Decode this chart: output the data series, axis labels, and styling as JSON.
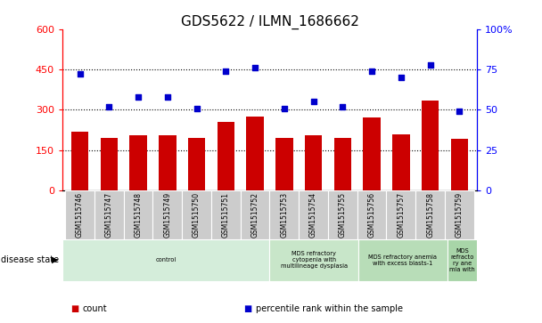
{
  "title": "GDS5622 / ILMN_1686662",
  "samples": [
    "GSM1515746",
    "GSM1515747",
    "GSM1515748",
    "GSM1515749",
    "GSM1515750",
    "GSM1515751",
    "GSM1515752",
    "GSM1515753",
    "GSM1515754",
    "GSM1515755",
    "GSM1515756",
    "GSM1515757",
    "GSM1515758",
    "GSM1515759"
  ],
  "counts": [
    220,
    195,
    205,
    205,
    195,
    255,
    275,
    195,
    205,
    197,
    270,
    210,
    335,
    193
  ],
  "percentile_ranks": [
    72,
    52,
    58,
    58,
    51,
    74,
    76,
    51,
    55,
    52,
    74,
    70,
    78,
    49
  ],
  "bar_color": "#cc0000",
  "dot_color": "#0000cc",
  "ylim_left": [
    0,
    600
  ],
  "ylim_right": [
    0,
    100
  ],
  "yticks_left": [
    0,
    150,
    300,
    450,
    600
  ],
  "yticks_right": [
    0,
    25,
    50,
    75,
    100
  ],
  "ytick_labels_right": [
    "0",
    "25",
    "50",
    "75",
    "100%"
  ],
  "hlines": [
    150,
    300,
    450
  ],
  "disease_groups": [
    {
      "label": "control",
      "start": 0,
      "end": 7,
      "color": "#d4edda"
    },
    {
      "label": "MDS refractory\ncytopenia with\nmultilineage dysplasia",
      "start": 7,
      "end": 10,
      "color": "#c8e6c9"
    },
    {
      "label": "MDS refractory anemia\nwith excess blasts-1",
      "start": 10,
      "end": 13,
      "color": "#b8ddb8"
    },
    {
      "label": "MDS\nrefracto\nry ane\nmia with",
      "start": 13,
      "end": 14,
      "color": "#a8d5a8"
    }
  ],
  "legend_items": [
    {
      "label": "count",
      "color": "#cc0000"
    },
    {
      "label": "percentile rank within the sample",
      "color": "#0000cc"
    }
  ],
  "disease_state_label": "disease state",
  "background_color": "#ffffff",
  "plot_bg_color": "#ffffff",
  "tick_area_color": "#cccccc",
  "title_fontsize": 11,
  "tick_fontsize": 7,
  "label_fontsize": 7
}
